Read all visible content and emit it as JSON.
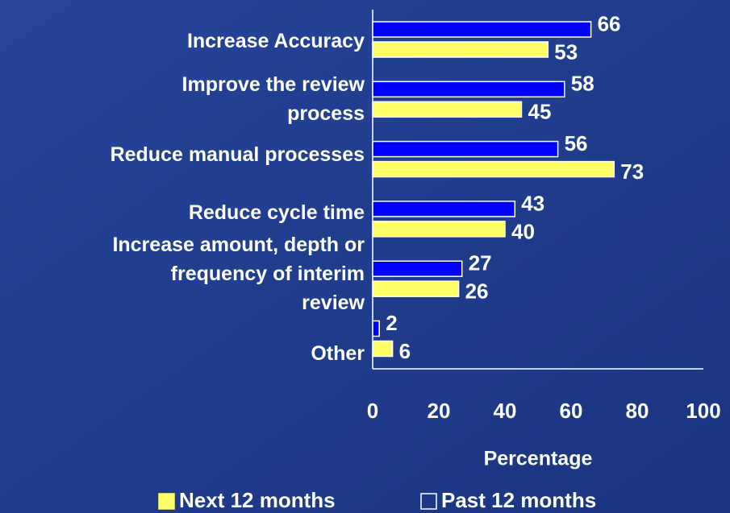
{
  "chart_data": {
    "type": "bar",
    "orientation": "horizontal",
    "categories": [
      "Increase Accuracy",
      "Improve the review\nprocess",
      "Reduce manual processes",
      "Reduce cycle time",
      "Increase amount, depth or\nfrequency of interim\nreview",
      "Other"
    ],
    "series": [
      {
        "name": "Past 12 months",
        "color": "#0000ff",
        "values": [
          66,
          58,
          56,
          43,
          27,
          2
        ]
      },
      {
        "name": "Next 12 months",
        "color": "#ffff66",
        "values": [
          53,
          45,
          73,
          40,
          26,
          6
        ]
      }
    ],
    "xlabel": "Percentage",
    "xlim": [
      0,
      100
    ],
    "xticks": [
      0,
      20,
      40,
      60,
      80,
      100
    ]
  }
}
